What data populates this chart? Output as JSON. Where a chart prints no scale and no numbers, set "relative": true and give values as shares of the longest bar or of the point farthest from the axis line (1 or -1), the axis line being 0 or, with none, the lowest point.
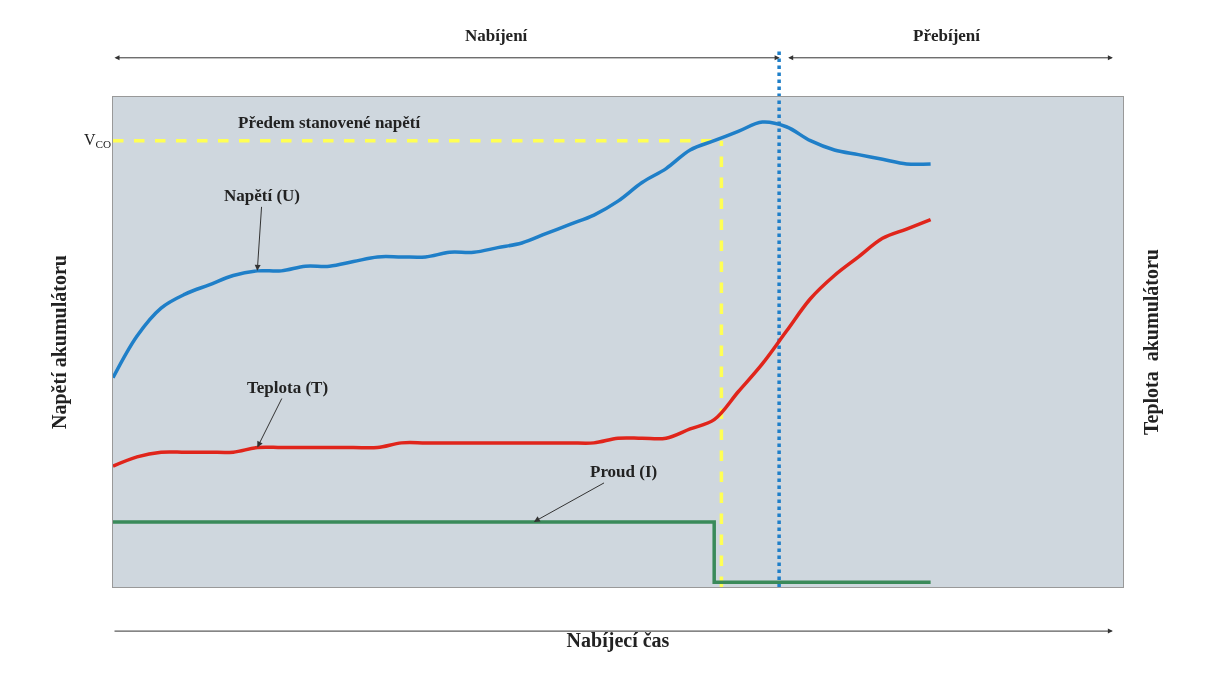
{
  "chart_data": {
    "type": "line",
    "relative": true,
    "xlabel": "Nabíjecí čas",
    "ylabel": "Napětí akumulátoru",
    "y2label": "Teplota  akumulátoru",
    "categories": [
      null,
      null,
      null,
      null,
      null,
      null,
      null,
      null,
      null,
      null,
      null,
      null,
      null,
      null,
      null,
      null,
      null,
      null,
      null,
      null,
      null,
      null,
      null,
      null,
      null,
      null,
      null,
      null,
      null,
      null,
      null,
      null,
      null,
      null,
      null,
      null,
      null,
      null,
      null,
      null,
      null,
      null,
      null
    ],
    "series": [
      {
        "color": "#1f7fc8",
        "values": [
          0.45,
          0.54,
          0.6,
          0.63,
          0.65,
          0.67,
          0.68,
          0.68,
          0.69,
          0.69,
          0.7,
          0.71,
          0.71,
          0.71,
          0.72,
          0.72,
          0.73,
          0.74,
          0.76,
          0.78,
          0.8,
          0.83,
          0.87,
          0.9,
          0.94,
          0.96,
          0.98,
          1.0,
          0.99,
          0.96,
          0.94,
          0.93,
          0.92,
          0.91,
          0.91,
          null,
          null,
          null,
          null,
          null,
          null,
          null,
          null
        ]
      },
      {
        "color": "#e0251b",
        "values": [
          0.26,
          0.28,
          0.29,
          0.29,
          0.29,
          0.29,
          0.3,
          0.3,
          0.3,
          0.3,
          0.3,
          0.3,
          0.31,
          0.31,
          0.31,
          0.31,
          0.31,
          0.31,
          0.31,
          0.31,
          0.31,
          0.32,
          0.32,
          0.32,
          0.34,
          0.36,
          0.42,
          0.48,
          0.55,
          0.62,
          0.67,
          0.71,
          0.75,
          0.77,
          0.79,
          null,
          null,
          null,
          null,
          null,
          null,
          null,
          null
        ]
      },
      {
        "type": "step",
        "color": "#3a8a5a",
        "values": [
          0.14,
          0.14,
          0.14,
          0.14,
          0.14,
          0.14,
          0.14,
          0.14,
          0.14,
          0.14,
          0.14,
          0.14,
          0.14,
          0.14,
          0.14,
          0.14,
          0.14,
          0.14,
          0.14,
          0.14,
          0.14,
          0.14,
          0.14,
          0.14,
          0.14,
          0.14,
          0.01,
          0.01,
          0.01,
          0.01,
          0.01,
          0.01,
          0.01,
          0.01,
          0.01,
          null,
          null,
          null,
          null,
          null,
          null,
          null,
          null
        ]
      }
    ],
    "ref_lines": [
      {
        "axis": "y",
        "value": 0.96,
        "label": "V$_{CO}$",
        "color": "#ffff55",
        "line_style": "dashed"
      }
    ],
    "annotations": [
      "Nabíjení",
      "Přebíjení",
      "Předem stanovené napětí",
      "Napětí (U)",
      "Teplota (T)",
      "Proud (I)"
    ],
    "legend": false
  }
}
